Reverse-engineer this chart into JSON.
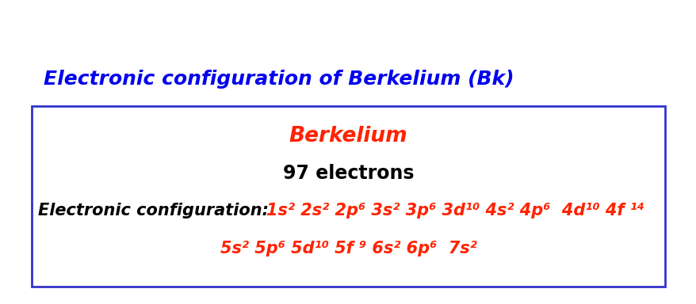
{
  "title": "Electronic configuration of Berkelium (Bk)",
  "title_color": "#0000EE",
  "title_fontsize": 18,
  "element_name": "Berkelium",
  "element_color": "#FF2200",
  "element_fontsize": 19,
  "electrons_text": "97 electrons",
  "electrons_color": "#000000",
  "electrons_fontsize": 17,
  "config_label": "Electronic configuration: ",
  "config_label_color": "#000000",
  "config_label_fontsize": 15,
  "config_red_color": "#FF2200",
  "config_line1": "1s² 2s² 2p⁶ 3s² 3p⁶ 3d¹⁰ 4s² 4p⁶  4d¹⁰ 4f ¹⁴",
  "config_line2": "5s² 5p⁶ 5d¹⁰ 5f ⁹ 6s² 6p⁶  7s²",
  "box_edge_color": "#3333CC",
  "bg_color": "#FFFFFF",
  "fig_width": 8.79,
  "fig_height": 3.84,
  "dpi": 100
}
